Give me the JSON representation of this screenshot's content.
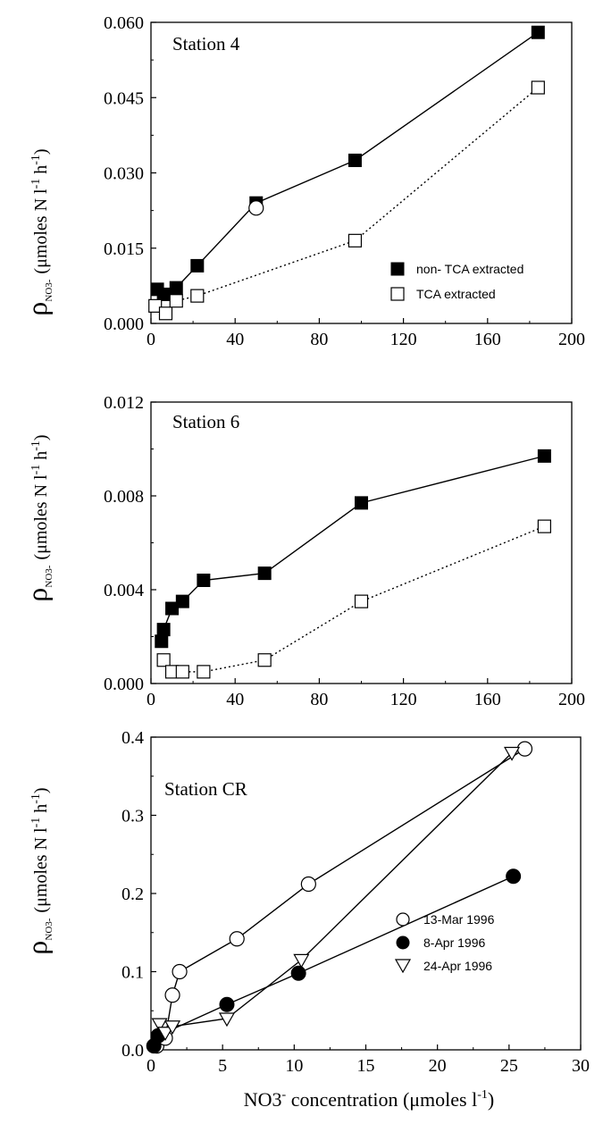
{
  "ylabel": {
    "rho": "ρ",
    "sub": "NO3-",
    "text": "(μmoles N l",
    "exp1": "-1",
    "mid": " h",
    "exp2": "-1",
    "close": ")"
  },
  "xlabel": {
    "prefix": "NO3",
    "sup": "-",
    "text": " concentration (μmoles l",
    "exp": "-1",
    "close": ")"
  },
  "chart_data": [
    {
      "type": "line",
      "title": "Station 4",
      "xlim": [
        0,
        200
      ],
      "ylim": [
        0,
        0.06
      ],
      "xticks": [
        "0",
        "40",
        "80",
        "120",
        "160",
        "200"
      ],
      "yticks": [
        "0.000",
        "0.015",
        "0.030",
        "0.045",
        "0.060"
      ],
      "legend_position": "bottom-right",
      "series": [
        {
          "name": "non- TCA extracted",
          "marker": "square-filled",
          "line": "solid",
          "points": [
            [
              3,
              0.0068
            ],
            [
              6,
              0.0058
            ],
            [
              12,
              0.0071
            ],
            [
              22,
              0.0115
            ],
            [
              50,
              0.024
            ],
            [
              97,
              0.0325
            ],
            [
              184,
              0.058
            ]
          ]
        },
        {
          "name": "TCA extracted",
          "marker": "square-open",
          "line": "dotted",
          "points": [
            [
              2,
              0.0035
            ],
            [
              7,
              0.002
            ],
            [
              12,
              0.0045
            ],
            [
              22,
              0.0055
            ],
            [
              97,
              0.0165
            ],
            [
              184,
              0.047
            ]
          ]
        },
        {
          "name": "",
          "marker": "circle-open",
          "line": "none",
          "points": [
            [
              50,
              0.023
            ]
          ]
        }
      ]
    },
    {
      "type": "line",
      "title": "Station 6",
      "xlim": [
        0,
        200
      ],
      "ylim": [
        0,
        0.012
      ],
      "xticks": [
        "0",
        "40",
        "80",
        "120",
        "160",
        "200"
      ],
      "yticks": [
        "0.000",
        "0.004",
        "0.008",
        "0.012"
      ],
      "series": [
        {
          "name": "non- TCA extracted",
          "marker": "square-filled",
          "line": "solid",
          "points": [
            [
              5,
              0.0018
            ],
            [
              6,
              0.0023
            ],
            [
              10,
              0.0032
            ],
            [
              15,
              0.0035
            ],
            [
              25,
              0.0044
            ],
            [
              54,
              0.0047
            ],
            [
              100,
              0.0077
            ],
            [
              187,
              0.0097
            ]
          ]
        },
        {
          "name": "TCA extracted",
          "marker": "square-open",
          "line": "dotted",
          "points": [
            [
              6,
              0.001
            ],
            [
              10,
              0.0005
            ],
            [
              15,
              0.0005
            ],
            [
              25,
              0.0005
            ],
            [
              54,
              0.001
            ],
            [
              100,
              0.0035
            ],
            [
              187,
              0.0067
            ]
          ]
        }
      ]
    },
    {
      "type": "line",
      "title": "Station CR",
      "xlim": [
        0,
        30
      ],
      "ylim": [
        0,
        0.4
      ],
      "xticks": [
        "0",
        "5",
        "10",
        "15",
        "20",
        "25",
        "30"
      ],
      "yticks": [
        "0.0",
        "0.1",
        "0.2",
        "0.3",
        "0.4"
      ],
      "legend_position": "bottom-right",
      "series": [
        {
          "name": "13-Mar 1996",
          "marker": "circle-open",
          "line": "solid",
          "points": [
            [
              0.4,
              0.005
            ],
            [
              1.0,
              0.015
            ],
            [
              1.5,
              0.07
            ],
            [
              2.0,
              0.1
            ],
            [
              6.0,
              0.142
            ],
            [
              11.0,
              0.212
            ],
            [
              26.1,
              0.385
            ]
          ]
        },
        {
          "name": "8-Apr 1996",
          "marker": "circle-filled",
          "line": "solid",
          "points": [
            [
              0.2,
              0.005
            ],
            [
              0.5,
              0.018
            ],
            [
              5.3,
              0.058
            ],
            [
              10.3,
              0.098
            ],
            [
              25.3,
              0.222
            ]
          ]
        },
        {
          "name": "24-Apr 1996",
          "marker": "triangle-down-open",
          "line": "solid",
          "points": [
            [
              0.6,
              0.033
            ],
            [
              1.0,
              0.022
            ],
            [
              1.5,
              0.03
            ],
            [
              5.3,
              0.04
            ],
            [
              10.5,
              0.115
            ],
            [
              25.2,
              0.38
            ]
          ]
        }
      ]
    }
  ]
}
